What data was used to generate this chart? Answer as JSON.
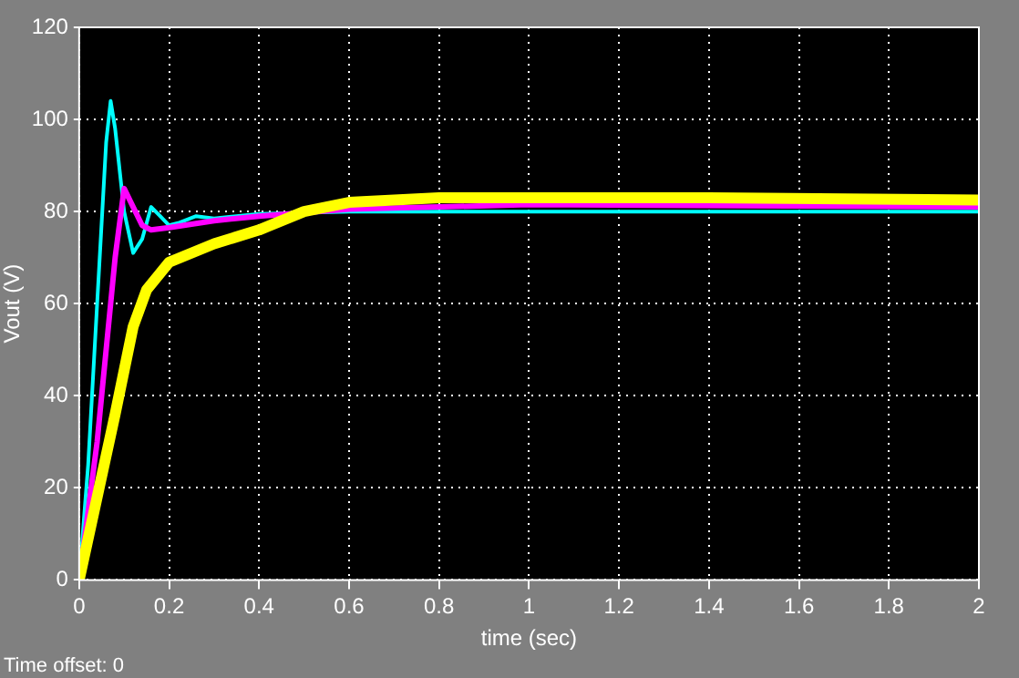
{
  "chart_data": {
    "type": "line",
    "xlabel": "time (sec)",
    "ylabel": "Vout (V)",
    "xlim": [
      0,
      2
    ],
    "xticks": [
      0,
      0.2,
      0.4,
      0.6,
      0.8,
      1,
      1.2,
      1.4,
      1.6,
      1.8,
      2
    ],
    "ylim": [
      0,
      120
    ],
    "yticks": [
      0,
      20,
      40,
      60,
      80,
      100,
      120
    ],
    "grid": true,
    "legend": false,
    "marker": "none",
    "line_style": "solid",
    "annotations": [
      "Time offset: 0"
    ],
    "series": [
      {
        "color": "#ffff00",
        "x": [
          0,
          0.04,
          0.08,
          0.12,
          0.15,
          0.2,
          0.3,
          0.4,
          0.5,
          0.6,
          0.8,
          1,
          1.4,
          2
        ],
        "values": [
          0,
          18,
          36,
          55,
          63,
          69,
          73,
          76,
          80,
          82,
          83,
          83,
          83,
          82.5
        ]
      },
      {
        "color": "#ff00ff",
        "x": [
          0,
          0.04,
          0.08,
          0.1,
          0.12,
          0.14,
          0.16,
          0.2,
          0.3,
          0.4,
          0.6,
          0.8,
          1,
          2
        ],
        "values": [
          0,
          30,
          70,
          85,
          81,
          77,
          76,
          76.5,
          78,
          79,
          80.5,
          81,
          81.5,
          81
        ]
      },
      {
        "color": "#00ffff",
        "x": [
          0,
          0.02,
          0.04,
          0.06,
          0.07,
          0.08,
          0.1,
          0.12,
          0.14,
          0.16,
          0.18,
          0.2,
          0.22,
          0.26,
          0.3,
          0.4,
          0.6,
          1,
          2
        ],
        "values": [
          0,
          25,
          60,
          95,
          104,
          98,
          80,
          71,
          74,
          81,
          79,
          77,
          77.5,
          79,
          78.5,
          79.5,
          80,
          80,
          80
        ]
      }
    ]
  }
}
